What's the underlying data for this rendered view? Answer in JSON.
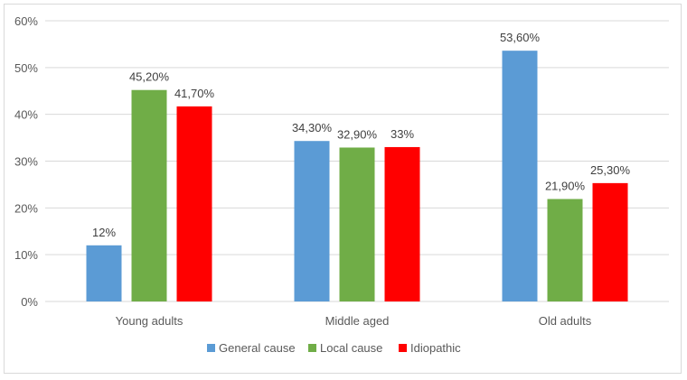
{
  "chart_data": {
    "type": "bar",
    "title": "",
    "xlabel": "",
    "ylabel": "",
    "categories": [
      "Young adults",
      "Middle aged",
      "Old adults"
    ],
    "series": [
      {
        "name": "General cause",
        "color": "#5b9bd5",
        "values": [
          12,
          34.3,
          53.6
        ],
        "labels": [
          "12%",
          "34,30%",
          "53,60%"
        ]
      },
      {
        "name": "Local cause",
        "color": "#70ad47",
        "values": [
          45.2,
          32.9,
          21.9
        ],
        "labels": [
          "45,20%",
          "32,90%",
          "21,90%"
        ]
      },
      {
        "name": "Idiopathic",
        "color": "#ff0000",
        "values": [
          41.7,
          33,
          25.3
        ],
        "labels": [
          "41,70%",
          "33%",
          "25,30%"
        ]
      }
    ],
    "ylim": [
      0,
      60
    ],
    "yticks": [
      0,
      10,
      20,
      30,
      40,
      50,
      60
    ],
    "ytick_labels": [
      "0%",
      "10%",
      "20%",
      "30%",
      "40%",
      "50%",
      "60%"
    ],
    "grid": true,
    "legend_position": "bottom"
  }
}
